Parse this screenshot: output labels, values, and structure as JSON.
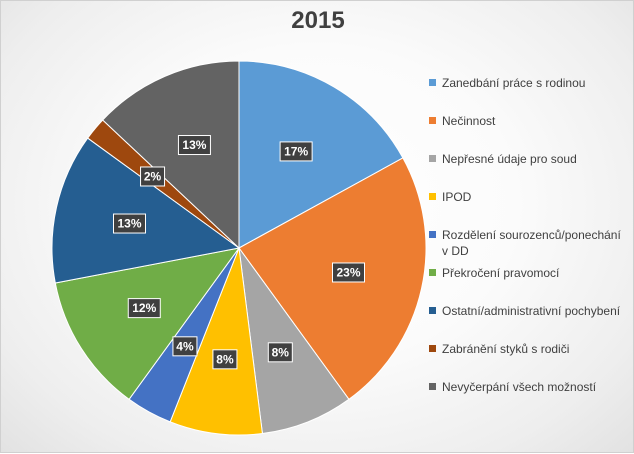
{
  "chart_data": {
    "type": "pie",
    "title": "2015",
    "categories": [
      "Zanedbání práce s rodinou",
      "Nečinnost",
      "Nepřesné údaje pro soud",
      "IPOD",
      "Rozdělení sourozenců/ponechání v DD",
      "Překročení pravomocí",
      "Ostatní/administrativní pochybení",
      "Zabránění styků s rodiči",
      "Nevyčerpání všech možností"
    ],
    "values": [
      17,
      23,
      8,
      8,
      4,
      12,
      13,
      2,
      13
    ],
    "labels": [
      "17%",
      "23%",
      "8%",
      "8%",
      "4%",
      "12%",
      "13%",
      "2%",
      "13%"
    ],
    "colors": [
      "#5B9BD5",
      "#ED7D31",
      "#A5A5A5",
      "#FFC000",
      "#4472C4",
      "#70AD47",
      "#255E91",
      "#9E480E",
      "#636363"
    ],
    "legend_position": "right"
  }
}
